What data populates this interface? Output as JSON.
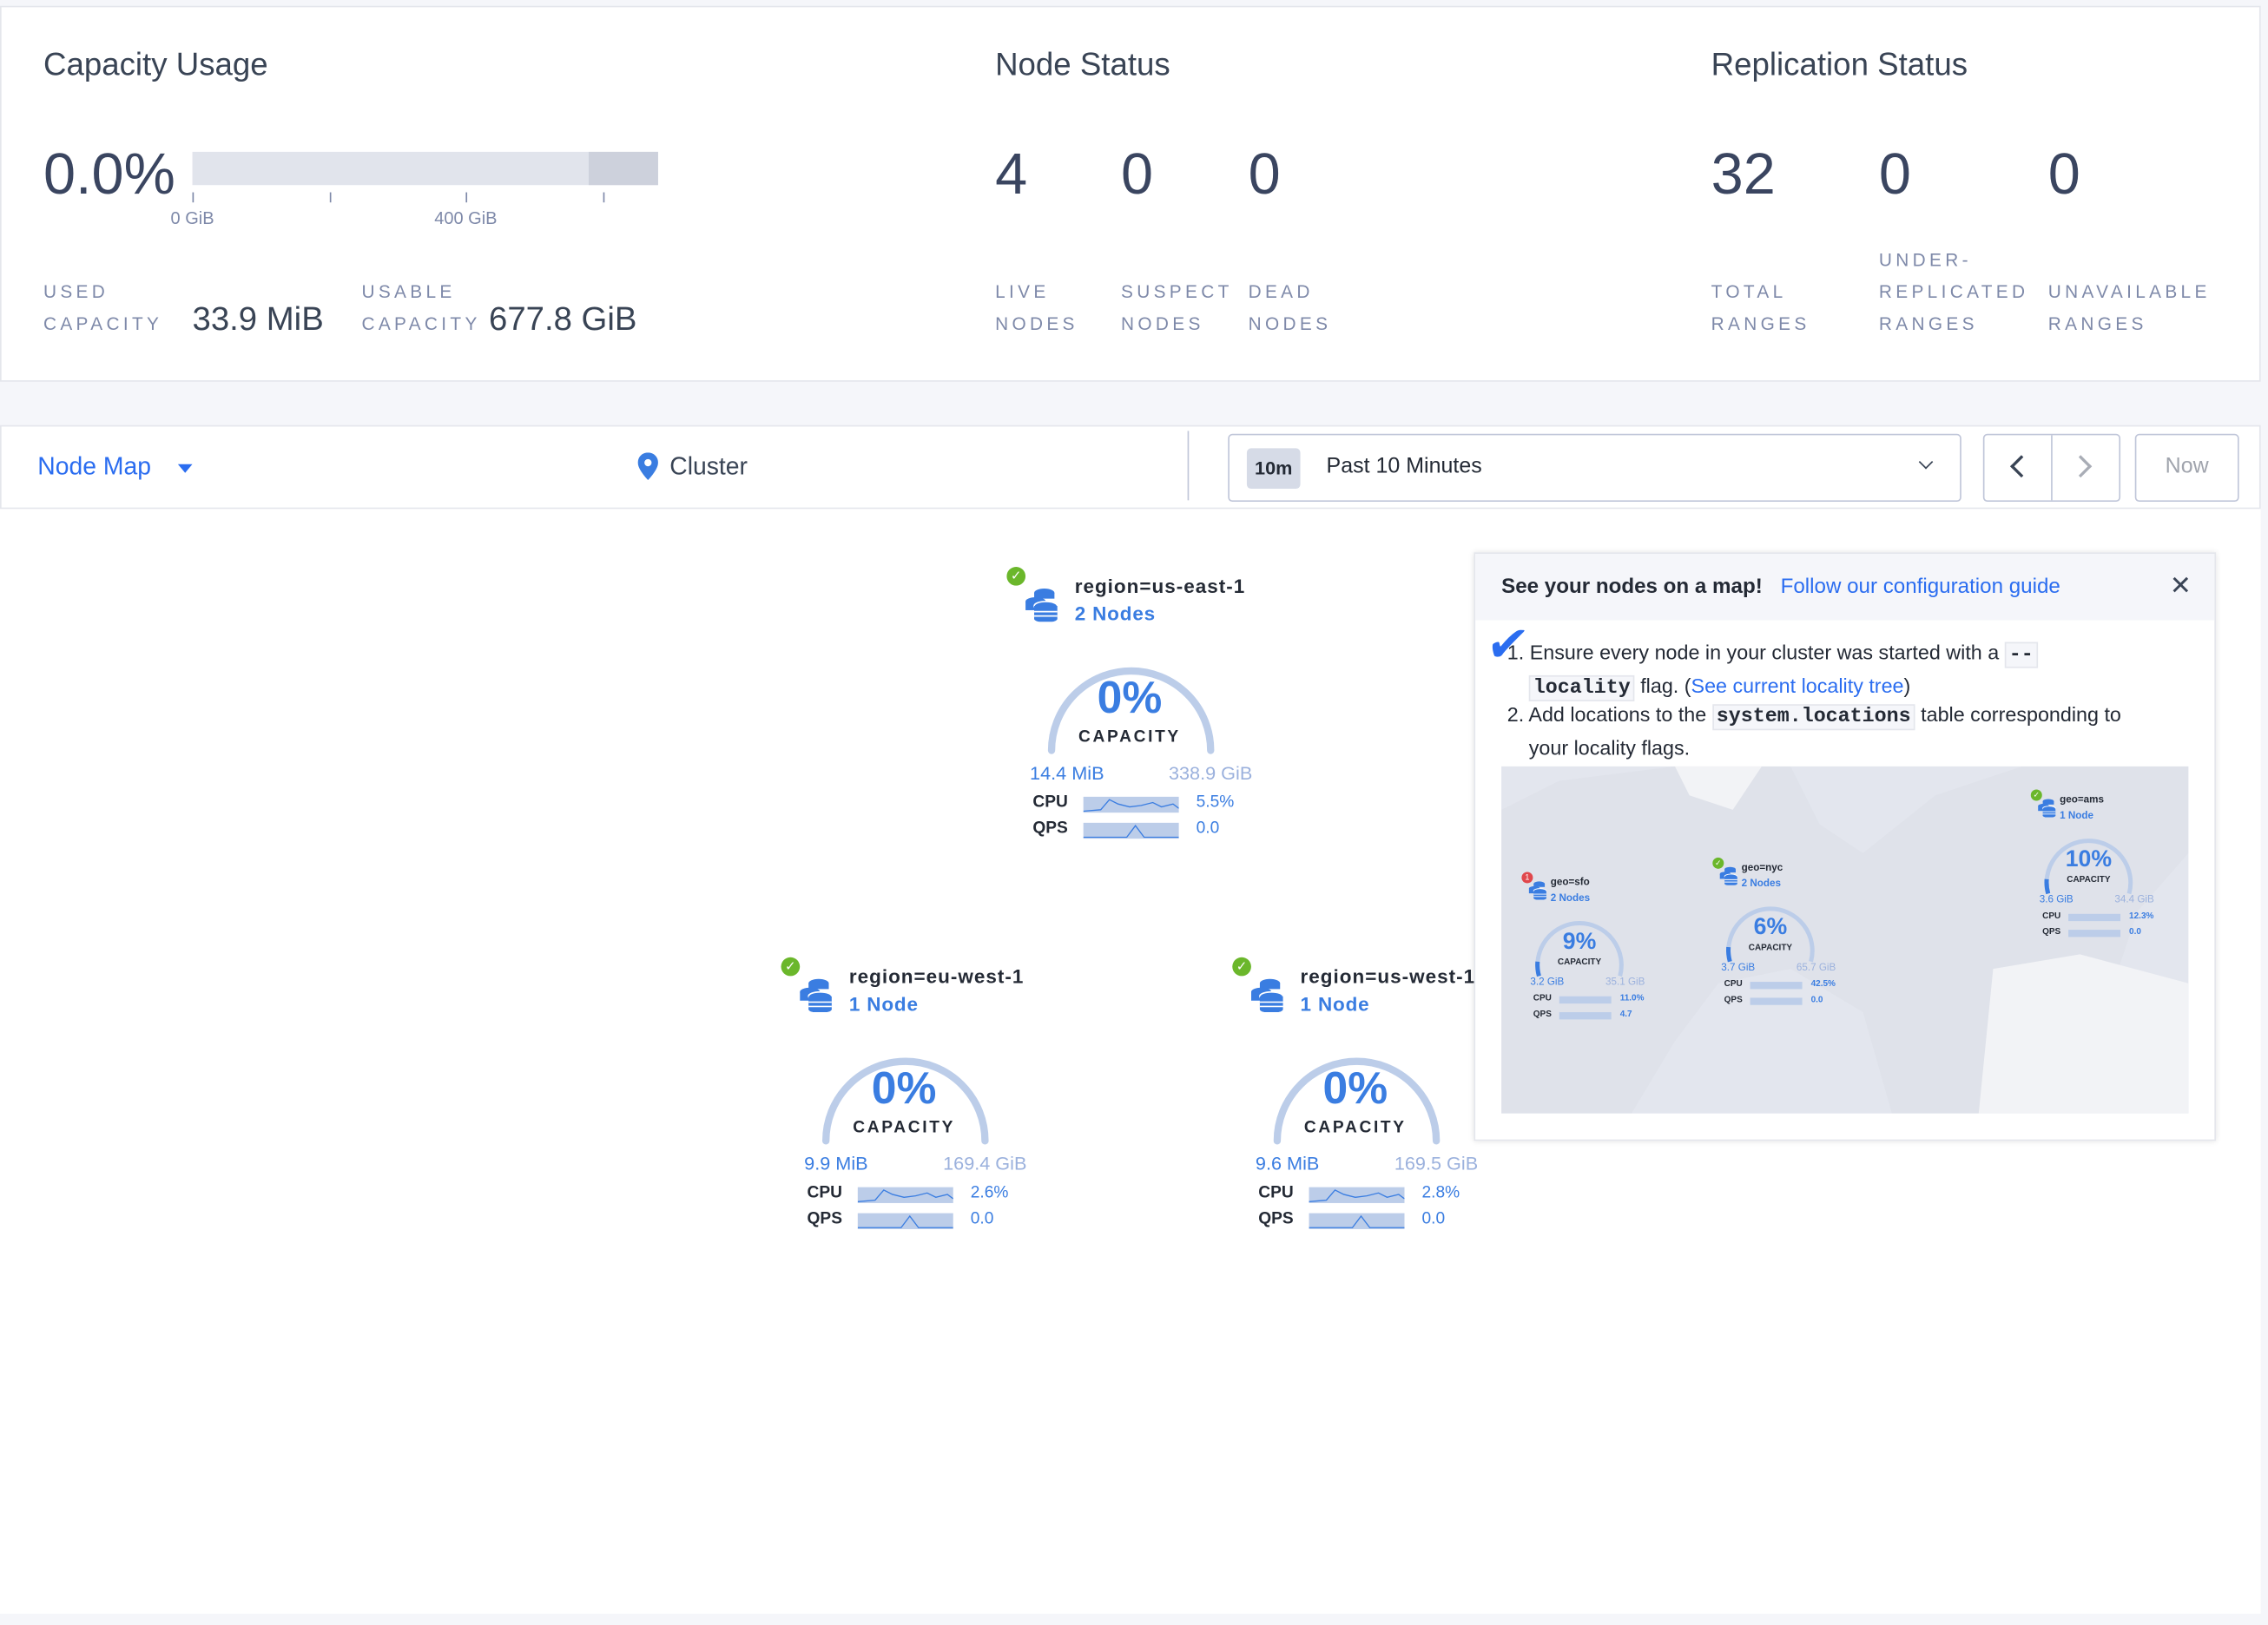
{
  "capacity": {
    "title": "Capacity Usage",
    "percent": "0.0%",
    "usage_fraction": 0.0,
    "tick_labels": [
      "0 GiB",
      "400 GiB"
    ],
    "used_label": [
      "USED",
      "CAPACITY"
    ],
    "used_value": "33.9 MiB",
    "usable_label": [
      "USABLE",
      "CAPACITY"
    ],
    "usable_value": "677.8 GiB"
  },
  "node_status": {
    "title": "Node Status",
    "stats": [
      {
        "value": "4",
        "label": [
          "LIVE",
          "NODES"
        ]
      },
      {
        "value": "0",
        "label": [
          "SUSPECT",
          "NODES"
        ]
      },
      {
        "value": "0",
        "label": [
          "DEAD",
          "NODES"
        ]
      }
    ]
  },
  "replication_status": {
    "title": "Replication Status",
    "stats": [
      {
        "value": "32",
        "label": [
          "",
          "TOTAL",
          "RANGES"
        ]
      },
      {
        "value": "0",
        "label": [
          "UNDER-",
          "REPLICATED",
          "RANGES"
        ]
      },
      {
        "value": "0",
        "label": [
          "",
          "UNAVAILABLE",
          "RANGES"
        ]
      }
    ]
  },
  "toolbar": {
    "view_select": "Node Map",
    "breadcrumb": "Cluster",
    "time_badge": "10m",
    "time_range": "Past 10 Minutes",
    "now_label": "Now"
  },
  "nodes": [
    {
      "title": "region=us-east-1",
      "count": "2 Nodes",
      "percent": "0%",
      "capacity_label": "CAPACITY",
      "used": "14.4 MiB",
      "total": "338.9 GiB",
      "cpu_label": "CPU",
      "cpu": "5.5%",
      "qps_label": "QPS",
      "qps": "0.0",
      "status": "healthy"
    },
    {
      "title": "region=eu-west-1",
      "count": "1 Node",
      "percent": "0%",
      "capacity_label": "CAPACITY",
      "used": "9.9 MiB",
      "total": "169.4 GiB",
      "cpu_label": "CPU",
      "cpu": "2.6%",
      "qps_label": "QPS",
      "qps": "0.0",
      "status": "healthy"
    },
    {
      "title": "region=us-west-1",
      "count": "1 Node",
      "percent": "0%",
      "capacity_label": "CAPACITY",
      "used": "9.6 MiB",
      "total": "169.5 GiB",
      "cpu_label": "CPU",
      "cpu": "2.8%",
      "qps_label": "QPS",
      "qps": "0.0",
      "status": "healthy"
    }
  ],
  "popup": {
    "title": "See your nodes on a map!",
    "link": "Follow our configuration guide",
    "step1_a": "1. Ensure every node in your cluster was started with a",
    "step1_code_a": "--",
    "step1_code_b": "locality",
    "step1_b": " flag. (",
    "step1_link": "See current locality tree",
    "step1_c": ")",
    "step2_a": "2. Add locations to the",
    "step2_code": "system.locations",
    "step2_b": "table corresponding to",
    "step2_c": "your locality flags.",
    "map_preview": [
      {
        "title": "geo=sfo",
        "count": "2 Nodes",
        "percent": "9%",
        "used": "3.2 GiB",
        "total": "35.1 GiB",
        "cpu": "11.0%",
        "qps": "4.7"
      },
      {
        "title": "geo=nyc",
        "count": "2 Nodes",
        "percent": "6%",
        "used": "3.7 GiB",
        "total": "65.7 GiB",
        "cpu": "42.5%",
        "qps": "0.0"
      },
      {
        "title": "geo=ams",
        "count": "1 Node",
        "percent": "10%",
        "used": "3.6 GiB",
        "total": "34.4 GiB",
        "cpu": "12.3%",
        "qps": "0.0"
      }
    ],
    "map_capacity_label": "CAPACITY",
    "map_cpu_label": "CPU",
    "map_qps_label": "QPS"
  },
  "colors": {
    "accent": "#2b6df0",
    "healthy": "#6bb72b",
    "alert": "#e0474c",
    "arc": "#bccde9"
  }
}
